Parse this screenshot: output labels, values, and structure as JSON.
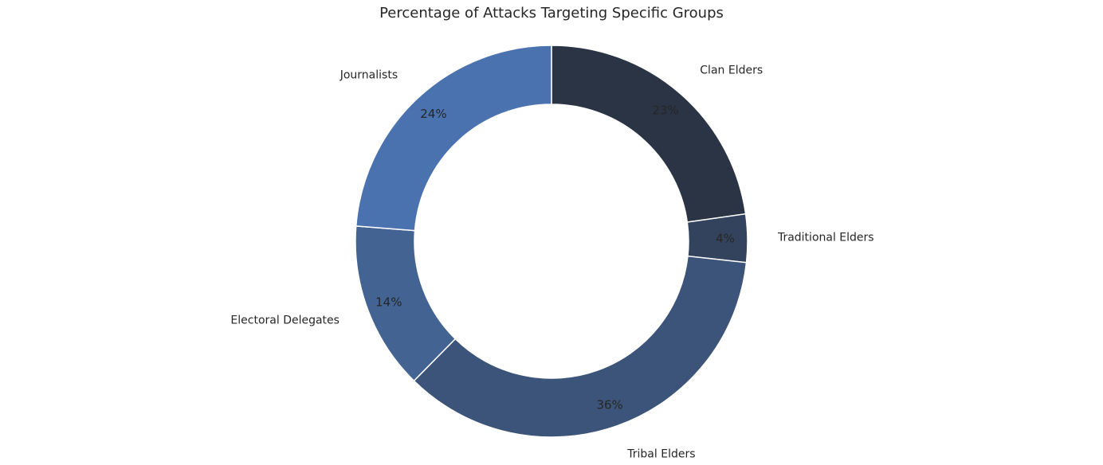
{
  "chart_data": {
    "type": "pie",
    "title": "Percentage of Attacks Targeting Specific Groups",
    "donut": true,
    "start_angle_deg": 90,
    "direction": "clockwise",
    "slices": [
      {
        "label": "Clan Elders",
        "value": 23,
        "pct_label": "23%",
        "color": "#2b3445"
      },
      {
        "label": "Traditional Elders",
        "value": 4,
        "pct_label": "4%",
        "color": "#33435e"
      },
      {
        "label": "Tribal Elders",
        "value": 36,
        "pct_label": "36%",
        "color": "#3c5479"
      },
      {
        "label": "Electoral Delegates",
        "value": 14,
        "pct_label": "14%",
        "color": "#436393"
      },
      {
        "label": "Journalists",
        "value": 24,
        "pct_label": "24%",
        "color": "#4a72ae"
      }
    ]
  }
}
